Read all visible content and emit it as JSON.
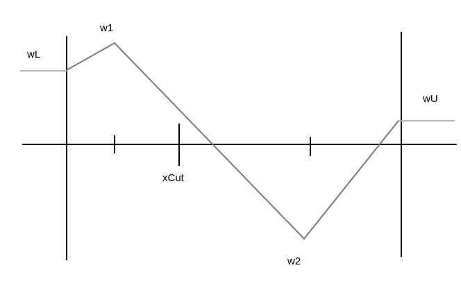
{
  "labels": {
    "wL": "wL",
    "w1": "w1",
    "xCut": "xCut",
    "w2": "w2",
    "wU": "wU"
  },
  "colors": {
    "axis": "#000000",
    "curve": "#7a7a7a",
    "extension": "#b4b4b4",
    "background": "#ffffff"
  }
}
